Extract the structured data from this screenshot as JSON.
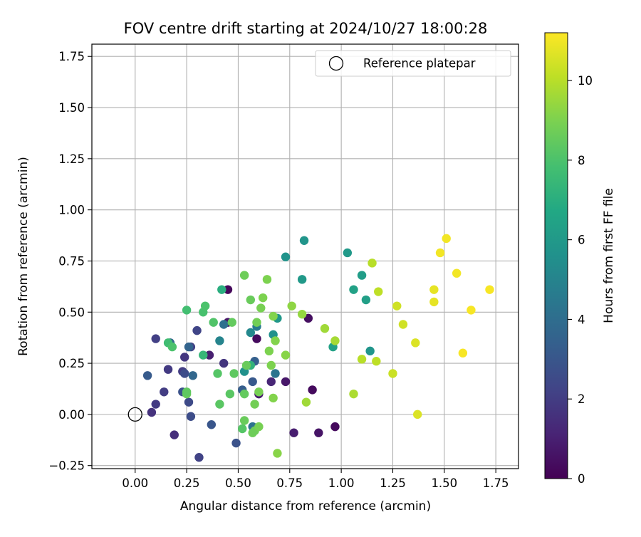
{
  "chart_data": {
    "type": "scatter",
    "title": "FOV centre drift starting at 2024/10/27 18:00:28",
    "xlabel": "Angular distance from reference (arcmin)",
    "ylabel": "Rotation from reference (arcmin)",
    "xlim": [
      -0.21,
      1.86
    ],
    "ylim": [
      -0.265,
      1.81
    ],
    "xticks": [
      0.0,
      0.25,
      0.5,
      0.75,
      1.0,
      1.25,
      1.5,
      1.75
    ],
    "xtick_labels": [
      "0.00",
      "0.25",
      "0.50",
      "0.75",
      "1.00",
      "1.25",
      "1.50",
      "1.75"
    ],
    "yticks": [
      -0.25,
      0.0,
      0.25,
      0.5,
      0.75,
      1.0,
      1.25,
      1.5,
      1.75
    ],
    "ytick_labels": [
      "−0.25",
      "0.00",
      "0.25",
      "0.50",
      "0.75",
      "1.00",
      "1.25",
      "1.50",
      "1.75"
    ],
    "grid": true,
    "legend": {
      "placement": "top-right",
      "entries": [
        {
          "label": "Reference platepar",
          "marker": "open-circle"
        }
      ]
    },
    "reference_point": {
      "x": 0.0,
      "y": 0.0
    },
    "colorbar": {
      "label": "Hours from first FF file",
      "colormap": "viridis",
      "range": [
        0,
        11.2
      ],
      "ticks": [
        0,
        2,
        4,
        6,
        8,
        10
      ],
      "tick_labels": [
        "0",
        "2",
        "4",
        "6",
        "8",
        "10"
      ]
    },
    "points": [
      {
        "x": 0.45,
        "y": 0.61,
        "c": 0.2
      },
      {
        "x": 0.59,
        "y": 0.37,
        "c": 0.3
      },
      {
        "x": 0.84,
        "y": 0.47,
        "c": 0.4
      },
      {
        "x": 0.86,
        "y": 0.12,
        "c": 0.3
      },
      {
        "x": 0.97,
        "y": -0.06,
        "c": 0.3
      },
      {
        "x": 0.89,
        "y": -0.09,
        "c": 0.6
      },
      {
        "x": 0.77,
        "y": -0.09,
        "c": 0.9
      },
      {
        "x": 0.73,
        "y": 0.16,
        "c": 0.7
      },
      {
        "x": 0.66,
        "y": 0.16,
        "c": 1.2
      },
      {
        "x": 0.45,
        "y": 0.45,
        "c": 0.6
      },
      {
        "x": 0.36,
        "y": 0.29,
        "c": 1.0
      },
      {
        "x": 0.6,
        "y": 0.1,
        "c": 0.8
      },
      {
        "x": 0.08,
        "y": 0.01,
        "c": 1.6
      },
      {
        "x": 0.1,
        "y": 0.05,
        "c": 1.9
      },
      {
        "x": 0.14,
        "y": 0.11,
        "c": 2.0
      },
      {
        "x": 0.19,
        "y": -0.1,
        "c": 1.5
      },
      {
        "x": 0.16,
        "y": 0.22,
        "c": 1.9
      },
      {
        "x": 0.23,
        "y": 0.21,
        "c": 2.0
      },
      {
        "x": 0.24,
        "y": 0.28,
        "c": 1.8
      },
      {
        "x": 0.1,
        "y": 0.37,
        "c": 2.1
      },
      {
        "x": 0.27,
        "y": 0.33,
        "c": 2.2
      },
      {
        "x": 0.3,
        "y": 0.41,
        "c": 2.3
      },
      {
        "x": 0.43,
        "y": 0.25,
        "c": 1.7
      },
      {
        "x": 0.31,
        "y": -0.21,
        "c": 2.2
      },
      {
        "x": 0.27,
        "y": -0.01,
        "c": 2.6
      },
      {
        "x": 0.26,
        "y": 0.06,
        "c": 2.5
      },
      {
        "x": 0.23,
        "y": 0.11,
        "c": 2.8
      },
      {
        "x": 0.24,
        "y": 0.2,
        "c": 2.6
      },
      {
        "x": 0.06,
        "y": 0.19,
        "c": 3.2
      },
      {
        "x": 0.37,
        "y": -0.05,
        "c": 3.0
      },
      {
        "x": 0.49,
        "y": -0.14,
        "c": 2.8
      },
      {
        "x": 0.52,
        "y": 0.12,
        "c": 3.3
      },
      {
        "x": 0.57,
        "y": 0.16,
        "c": 3.1
      },
      {
        "x": 0.58,
        "y": 0.26,
        "c": 3.4
      },
      {
        "x": 0.28,
        "y": 0.19,
        "c": 3.7
      },
      {
        "x": 0.26,
        "y": 0.33,
        "c": 3.6
      },
      {
        "x": 0.17,
        "y": 0.35,
        "c": 3.8
      },
      {
        "x": 0.43,
        "y": 0.44,
        "c": 4.1
      },
      {
        "x": 0.57,
        "y": -0.06,
        "c": 4.2
      },
      {
        "x": 0.68,
        "y": 0.2,
        "c": 4.3
      },
      {
        "x": 0.59,
        "y": 0.43,
        "c": 4.6
      },
      {
        "x": 0.41,
        "y": 0.36,
        "c": 5.0
      },
      {
        "x": 0.56,
        "y": 0.4,
        "c": 5.2
      },
      {
        "x": 0.53,
        "y": 0.21,
        "c": 5.6
      },
      {
        "x": 0.67,
        "y": 0.39,
        "c": 5.6
      },
      {
        "x": 0.69,
        "y": 0.47,
        "c": 5.9
      },
      {
        "x": 0.73,
        "y": 0.77,
        "c": 5.7
      },
      {
        "x": 0.82,
        "y": 0.85,
        "c": 5.8
      },
      {
        "x": 0.81,
        "y": 0.66,
        "c": 6.0
      },
      {
        "x": 0.96,
        "y": 0.33,
        "c": 6.4
      },
      {
        "x": 1.03,
        "y": 0.79,
        "c": 6.0
      },
      {
        "x": 1.06,
        "y": 0.61,
        "c": 6.4
      },
      {
        "x": 1.1,
        "y": 0.68,
        "c": 6.2
      },
      {
        "x": 1.12,
        "y": 0.56,
        "c": 6.3
      },
      {
        "x": 1.14,
        "y": 0.31,
        "c": 5.8
      },
      {
        "x": 0.42,
        "y": 0.61,
        "c": 7.0
      },
      {
        "x": 0.56,
        "y": 0.24,
        "c": 7.2
      },
      {
        "x": 0.33,
        "y": 0.29,
        "c": 7.4
      },
      {
        "x": 0.16,
        "y": 0.35,
        "c": 7.7
      },
      {
        "x": 0.18,
        "y": 0.33,
        "c": 8.0
      },
      {
        "x": 0.25,
        "y": 0.51,
        "c": 7.8
      },
      {
        "x": 0.33,
        "y": 0.5,
        "c": 7.9
      },
      {
        "x": 0.34,
        "y": 0.53,
        "c": 8.0
      },
      {
        "x": 0.38,
        "y": 0.45,
        "c": 8.1
      },
      {
        "x": 0.4,
        "y": 0.2,
        "c": 8.2
      },
      {
        "x": 0.41,
        "y": 0.05,
        "c": 8.3
      },
      {
        "x": 0.46,
        "y": 0.1,
        "c": 8.3
      },
      {
        "x": 0.47,
        "y": 0.45,
        "c": 8.5
      },
      {
        "x": 0.48,
        "y": 0.2,
        "c": 8.4
      },
      {
        "x": 0.25,
        "y": 0.1,
        "c": 8.6
      },
      {
        "x": 0.25,
        "y": 0.11,
        "c": 8.4
      },
      {
        "x": 0.52,
        "y": -0.07,
        "c": 8.2
      },
      {
        "x": 0.53,
        "y": -0.03,
        "c": 8.6
      },
      {
        "x": 0.53,
        "y": 0.68,
        "c": 8.7
      },
      {
        "x": 0.53,
        "y": 0.1,
        "c": 8.5
      },
      {
        "x": 0.54,
        "y": 0.24,
        "c": 8.6
      },
      {
        "x": 0.56,
        "y": 0.56,
        "c": 8.6
      },
      {
        "x": 0.57,
        "y": -0.09,
        "c": 8.7
      },
      {
        "x": 0.58,
        "y": -0.08,
        "c": 8.7
      },
      {
        "x": 0.58,
        "y": 0.05,
        "c": 8.8
      },
      {
        "x": 0.59,
        "y": 0.45,
        "c": 8.8
      },
      {
        "x": 0.6,
        "y": 0.11,
        "c": 8.9
      },
      {
        "x": 0.6,
        "y": -0.06,
        "c": 8.9
      },
      {
        "x": 0.61,
        "y": 0.52,
        "c": 8.9
      },
      {
        "x": 0.62,
        "y": 0.57,
        "c": 9.0
      },
      {
        "x": 0.64,
        "y": 0.66,
        "c": 9.0
      },
      {
        "x": 0.65,
        "y": 0.31,
        "c": 9.0
      },
      {
        "x": 0.66,
        "y": 0.24,
        "c": 9.0
      },
      {
        "x": 0.67,
        "y": 0.48,
        "c": 9.1
      },
      {
        "x": 0.67,
        "y": 0.08,
        "c": 9.1
      },
      {
        "x": 0.68,
        "y": 0.36,
        "c": 9.1
      },
      {
        "x": 0.69,
        "y": -0.19,
        "c": 9.2
      },
      {
        "x": 0.73,
        "y": 0.29,
        "c": 9.2
      },
      {
        "x": 0.76,
        "y": 0.53,
        "c": 9.3
      },
      {
        "x": 0.81,
        "y": 0.49,
        "c": 9.4
      },
      {
        "x": 0.83,
        "y": 0.06,
        "c": 9.6
      },
      {
        "x": 0.92,
        "y": 0.42,
        "c": 9.6
      },
      {
        "x": 0.97,
        "y": 0.36,
        "c": 9.7
      },
      {
        "x": 1.06,
        "y": 0.1,
        "c": 9.8
      },
      {
        "x": 1.1,
        "y": 0.27,
        "c": 10.0
      },
      {
        "x": 1.15,
        "y": 0.74,
        "c": 10.0
      },
      {
        "x": 1.17,
        "y": 0.26,
        "c": 10.1
      },
      {
        "x": 1.18,
        "y": 0.6,
        "c": 10.1
      },
      {
        "x": 1.25,
        "y": 0.2,
        "c": 10.3
      },
      {
        "x": 1.27,
        "y": 0.53,
        "c": 10.4
      },
      {
        "x": 1.3,
        "y": 0.44,
        "c": 10.4
      },
      {
        "x": 1.36,
        "y": 0.35,
        "c": 10.6
      },
      {
        "x": 1.37,
        "y": 0.0,
        "c": 10.6
      },
      {
        "x": 1.45,
        "y": 0.61,
        "c": 10.8
      },
      {
        "x": 1.45,
        "y": 0.55,
        "c": 10.8
      },
      {
        "x": 1.48,
        "y": 0.79,
        "c": 11.0
      },
      {
        "x": 1.51,
        "y": 0.86,
        "c": 11.0
      },
      {
        "x": 1.56,
        "y": 0.69,
        "c": 11.0
      },
      {
        "x": 1.59,
        "y": 0.3,
        "c": 11.1
      },
      {
        "x": 1.63,
        "y": 0.51,
        "c": 11.1
      },
      {
        "x": 1.72,
        "y": 0.61,
        "c": 11.1
      }
    ]
  }
}
